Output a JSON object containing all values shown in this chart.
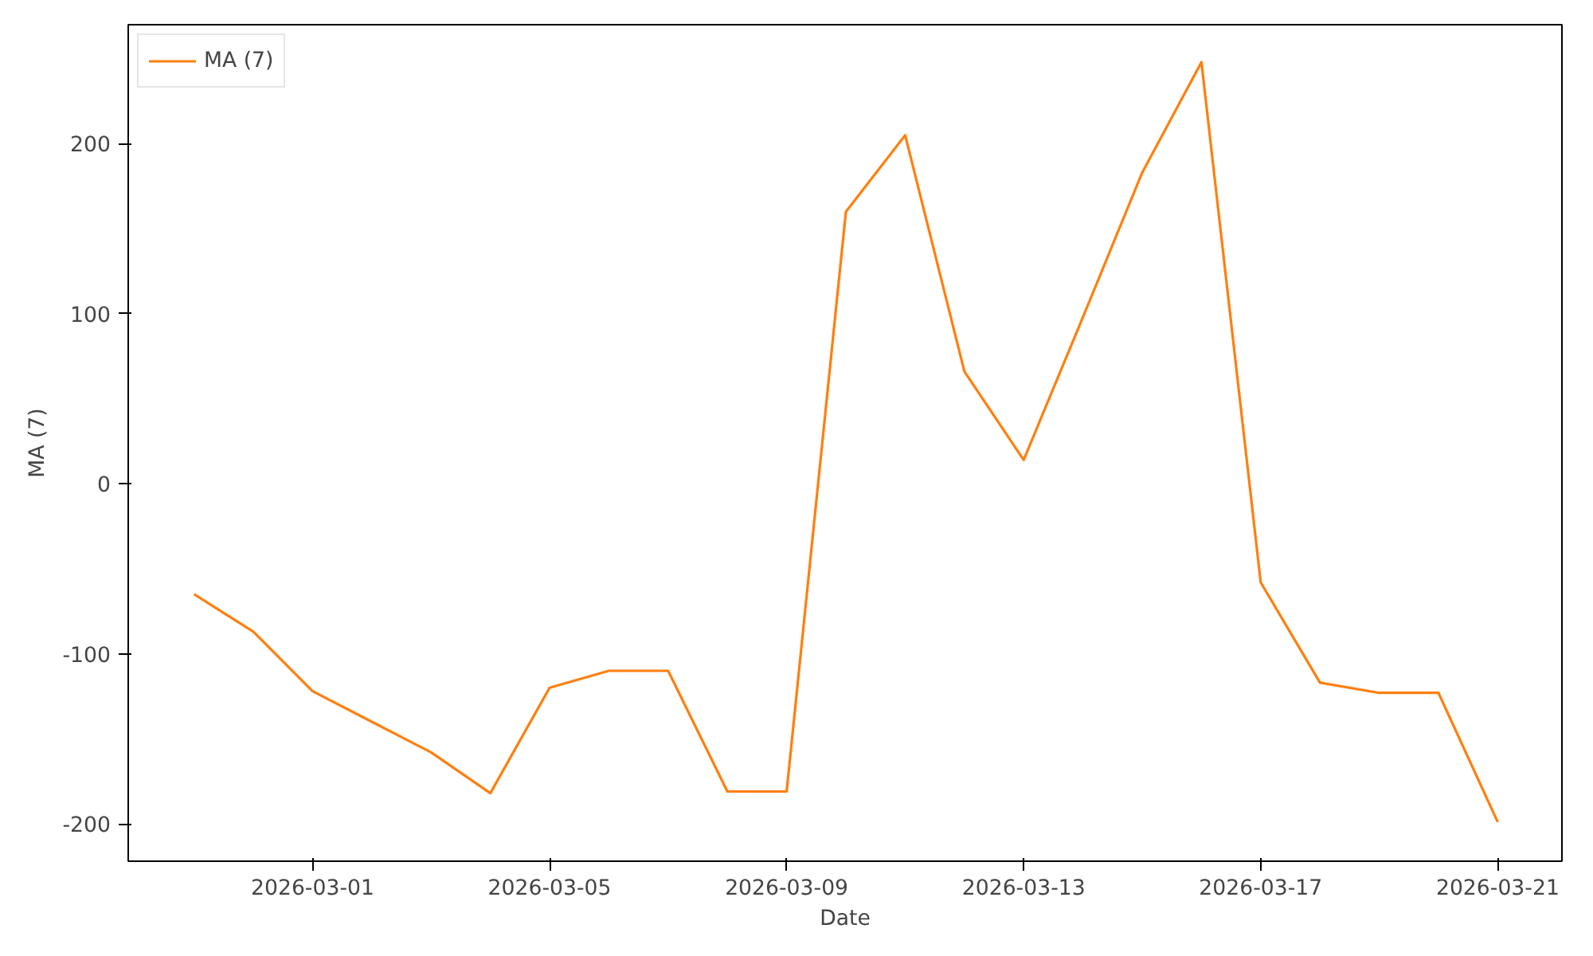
{
  "chart_data": {
    "type": "line",
    "xlabel": "Date",
    "ylabel": "MA (7)",
    "x": [
      "2026-02-27",
      "2026-02-28",
      "2026-03-01",
      "2026-03-02",
      "2026-03-03",
      "2026-03-04",
      "2026-03-05",
      "2026-03-06",
      "2026-03-07",
      "2026-03-08",
      "2026-03-09",
      "2026-03-10",
      "2026-03-11",
      "2026-03-12",
      "2026-03-13",
      "2026-03-14",
      "2026-03-15",
      "2026-03-16",
      "2026-03-17",
      "2026-03-18",
      "2026-03-19",
      "2026-03-20",
      "2026-03-21"
    ],
    "series": [
      {
        "name": "MA (7)",
        "color": "#ff7f0e",
        "values": [
          -65,
          -87,
          -122,
          -140,
          -158,
          -182,
          -120,
          -110,
          -110,
          -181,
          -181,
          160,
          205,
          66,
          14,
          98,
          183,
          248,
          -58,
          -117,
          -123,
          -123,
          -199
        ]
      }
    ],
    "xlim": [
      "2026-02-25T21:20",
      "2026-03-22T02:00"
    ],
    "ylim": [
      -222,
      270
    ],
    "xticks": [
      "2026-03-01",
      "2026-03-05",
      "2026-03-09",
      "2026-03-13",
      "2026-03-17",
      "2026-03-21"
    ],
    "yticks": [
      -200,
      -100,
      0,
      100,
      200
    ],
    "grid": false,
    "legend": "top left",
    "marker": "none",
    "line_style": "solid"
  }
}
